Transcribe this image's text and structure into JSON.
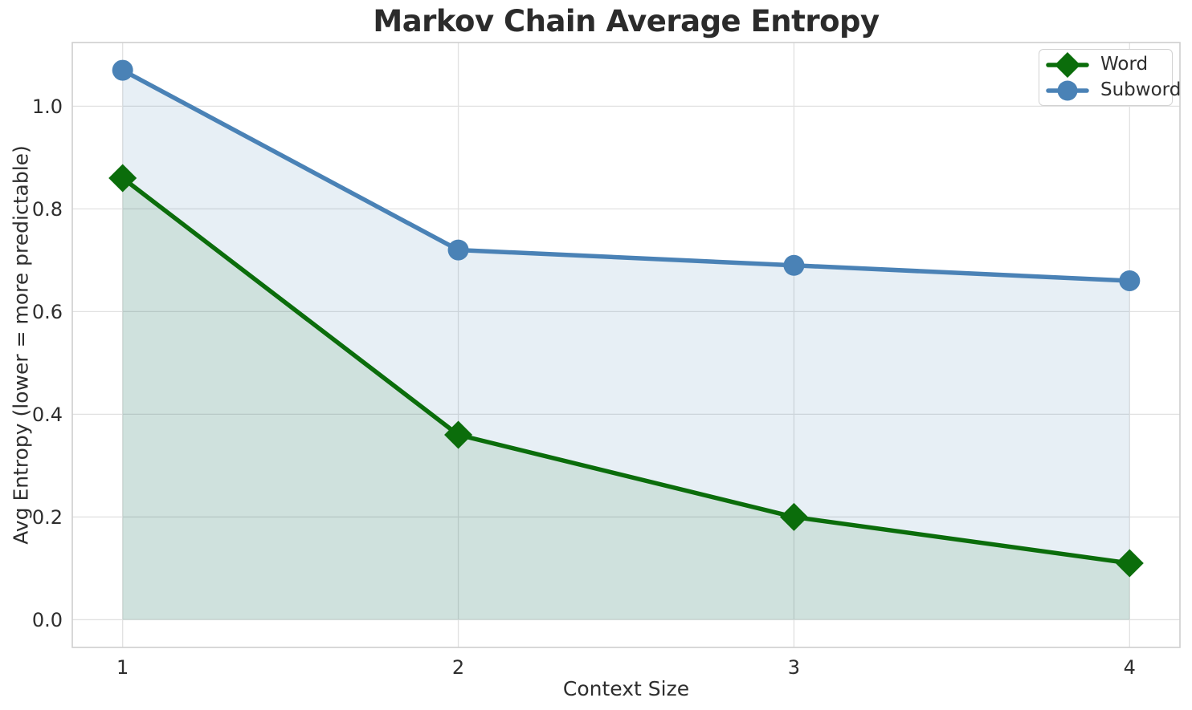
{
  "chart_data": {
    "type": "line",
    "title": "Markov Chain Average Entropy",
    "xlabel": "Context Size",
    "ylabel": "Avg Entropy (lower = more predictable)",
    "x": [
      1,
      2,
      3,
      4
    ],
    "series": [
      {
        "name": "Word",
        "values": [
          0.86,
          0.36,
          0.2,
          0.11
        ],
        "color": "#0b6d0b",
        "fill_color": "rgba(11,109,11,0.11)",
        "marker": "diamond"
      },
      {
        "name": "Subword",
        "values": [
          1.07,
          0.72,
          0.69,
          0.66
        ],
        "color": "#4a82b6",
        "fill_color": "rgba(70,130,180,0.13)",
        "marker": "circle"
      }
    ],
    "fill_baseline": 0,
    "xlim": [
      0.85,
      4.15
    ],
    "ylim": [
      -0.054,
      1.124
    ],
    "xticks": [
      1,
      2,
      3,
      4
    ],
    "xtick_labels": [
      "1",
      "2",
      "3",
      "4"
    ],
    "yticks": [
      0,
      0.2,
      0.4,
      0.6,
      0.8,
      1.0
    ],
    "ytick_labels": [
      "0.0",
      "0.2",
      "0.4",
      "0.6",
      "0.8",
      "1.0"
    ],
    "grid": true,
    "legend": {
      "position": "upper right",
      "items": [
        "Word",
        "Subword"
      ]
    },
    "colors": {
      "grid": "#e1e1e1",
      "spine": "#cfcfcf",
      "text": "#2e2e2e"
    }
  }
}
